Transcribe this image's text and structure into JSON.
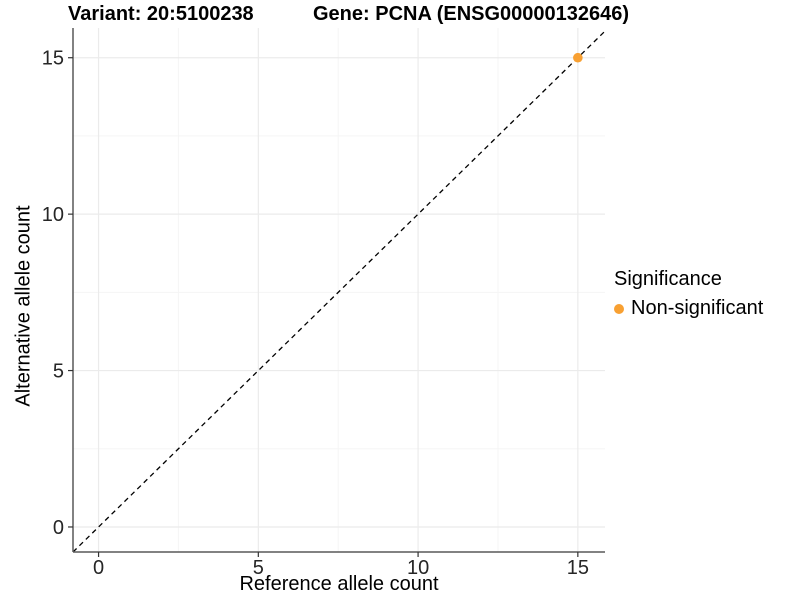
{
  "chart_data": {
    "type": "scatter",
    "titles": {
      "left": "Variant: 20:5100238",
      "right": "Gene: PCNA (ENSG00000132646)"
    },
    "xlabel": "Reference allele count",
    "ylabel": "Alternative allele count",
    "xlim": [
      -0.8,
      15.85
    ],
    "ylim": [
      -0.8,
      15.95
    ],
    "x_major_ticks": [
      0,
      5,
      10,
      15
    ],
    "y_major_ticks": [
      0,
      5,
      10,
      15
    ],
    "x_minor_ticks": [
      2.5,
      7.5,
      12.5
    ],
    "y_minor_ticks": [
      2.5,
      7.5,
      12.5
    ],
    "grid": true,
    "series": [
      {
        "name": "Non-significant",
        "color": "#F8A032",
        "points": [
          {
            "x": 15,
            "y": 15
          }
        ]
      }
    ],
    "reference_line": {
      "type": "identity",
      "style": "dashed",
      "color": "#000000"
    },
    "legend": {
      "title": "Significance",
      "position": "right",
      "items": [
        {
          "label": "Non-significant",
          "color": "#F8A032",
          "marker": "circle"
        }
      ]
    },
    "colors": {
      "background": "#FFFFFF",
      "axis_line": "#595959",
      "tick_mark": "#333333",
      "tick_label": "#262626",
      "grid_major": "#EBEBEB",
      "grid_minor": "#F5F5F5"
    }
  }
}
